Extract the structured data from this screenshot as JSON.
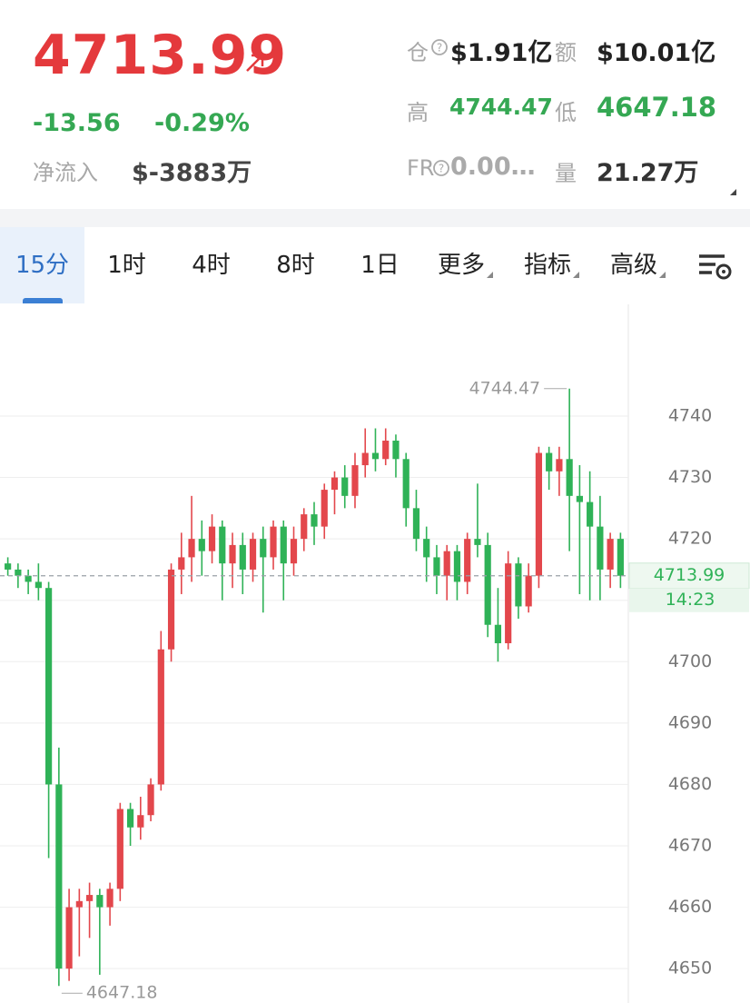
{
  "header": {
    "price": "4713.99",
    "change": "-13.56",
    "change_pct": "-0.29%",
    "net_inflow_label": "净流入",
    "net_inflow": "$-3883万",
    "open_interest_label": "仓",
    "open_interest": "$1.91亿",
    "turnover_label": "额",
    "turnover": "$10.01亿",
    "high_label": "高",
    "high": "4744.47",
    "low_label": "低",
    "low": "4647.18",
    "fr_label": "FR",
    "fr": "0.00…",
    "volume_label": "量",
    "volume": "21.27万"
  },
  "tabs": [
    "15分",
    "1时",
    "4时",
    "8时",
    "1日",
    "更多",
    "指标",
    "高级"
  ],
  "chart_data": {
    "type": "candlestick",
    "up_color": "#e3474c",
    "down_color": "#2fb257",
    "open": [
      4716,
      4715,
      4714,
      4713,
      4712,
      4680,
      4650,
      4660,
      4661,
      4662,
      4660,
      4663,
      4676,
      4673,
      4675,
      4680,
      4702,
      4715,
      4717,
      4720,
      4718,
      4722,
      4716,
      4719,
      4715,
      4720,
      4717,
      4722,
      4716,
      4720,
      4724,
      4722,
      4728,
      4730,
      4727,
      4732,
      4734,
      4733,
      4736,
      4733,
      4725,
      4720,
      4717,
      4714,
      4718,
      4713,
      4720,
      4719,
      4706,
      4703,
      4716,
      4709,
      4714,
      4734,
      4731,
      4733,
      4727,
      4726,
      4722,
      4715,
      4720
    ],
    "high": [
      4717,
      4716,
      4715,
      4716,
      4713,
      4686,
      4663,
      4663,
      4664,
      4663,
      4664,
      4677,
      4677,
      4678,
      4681,
      4705,
      4716,
      4721,
      4727,
      4723,
      4724,
      4723,
      4721,
      4721,
      4721,
      4722,
      4723,
      4723,
      4722,
      4725,
      4726,
      4729,
      4731,
      4732,
      4734,
      4738,
      4738,
      4738,
      4737,
      4734,
      4728,
      4722,
      4719,
      4719,
      4719,
      4721,
      4729,
      4721,
      4712,
      4718,
      4717,
      4716,
      4735,
      4735,
      4735,
      4744.47,
      4732,
      4731,
      4727,
      4721,
      4721
    ],
    "low": [
      4714,
      4712,
      4711,
      4710,
      4668,
      4647.18,
      4648,
      4652,
      4655,
      4649,
      4657,
      4661,
      4670,
      4671,
      4674,
      4679,
      4700,
      4711,
      4713,
      4714,
      4716,
      4710,
      4712,
      4711,
      4713,
      4708,
      4715,
      4710,
      4714,
      4718,
      4719,
      4720,
      4724,
      4725,
      4725,
      4730,
      4731,
      4732,
      4730,
      4722,
      4718,
      4713,
      4711,
      4710,
      4710,
      4711,
      4717,
      4704,
      4700,
      4702,
      4707,
      4708,
      4712,
      4728,
      4727,
      4718,
      4711,
      4710,
      4710,
      4712,
      4712
    ],
    "close": [
      4715,
      4714,
      4713,
      4712,
      4680,
      4650,
      4660,
      4661,
      4662,
      4660,
      4663,
      4676,
      4673,
      4675,
      4680,
      4702,
      4715,
      4717,
      4720,
      4718,
      4722,
      4716,
      4719,
      4715,
      4720,
      4717,
      4722,
      4716,
      4720,
      4724,
      4722,
      4728,
      4730,
      4727,
      4732,
      4734,
      4733,
      4736,
      4733,
      4725,
      4720,
      4717,
      4714,
      4718,
      4713,
      4720,
      4719,
      4706,
      4703,
      4716,
      4709,
      4714,
      4734,
      4731,
      4733,
      4727,
      4726,
      4722,
      4715,
      4720,
      4713.99
    ],
    "ylim": [
      4644.4,
      4758.2
    ],
    "yticks": [
      4650,
      4660,
      4670,
      4680,
      4690,
      4700,
      4710,
      4720,
      4730,
      4740
    ],
    "grid": true,
    "last_price": {
      "value": 4713.99,
      "label": "4713.99"
    },
    "countdown": "14:23",
    "high_marker": {
      "value": 4744.47,
      "label": "4744.47"
    },
    "low_marker": {
      "value": 4647.18,
      "label": "4647.18"
    }
  }
}
